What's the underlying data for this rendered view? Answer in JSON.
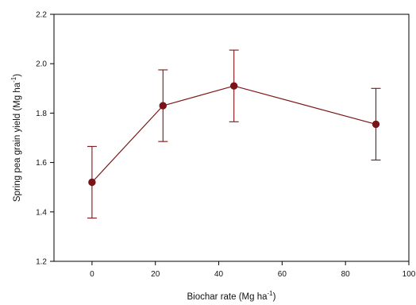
{
  "chart_data": {
    "type": "line",
    "title": "",
    "xlabel_main": "Biochar rate (Mg ha",
    "xlabel_sup": "-1",
    "xlabel_close": ")",
    "ylabel_main": "Spring pea grain yield (Mg ha",
    "ylabel_sup": "-1",
    "ylabel_close": ")",
    "xlim": [
      -12,
      100
    ],
    "ylim": [
      1.2,
      2.2
    ],
    "xticks": [
      0,
      20,
      40,
      60,
      80,
      100
    ],
    "yticks": [
      1.2,
      1.4,
      1.6,
      1.8,
      2.0,
      2.2
    ],
    "xtick_labels": [
      "0",
      "20",
      "40",
      "60",
      "80",
      "100"
    ],
    "ytick_labels": [
      "1.2",
      "1.4",
      "1.6",
      "1.8",
      "2.0",
      "2.2"
    ],
    "grid": false,
    "series": [
      {
        "color": "#7a1416",
        "points": [
          {
            "x": 0,
            "y": 1.52,
            "err": 0.145
          },
          {
            "x": 22.4,
            "y": 1.83,
            "err": 0.145
          },
          {
            "x": 44.8,
            "y": 1.91,
            "err": 0.145
          },
          {
            "x": 89.6,
            "y": 1.755,
            "err": 0.145
          }
        ]
      }
    ]
  }
}
